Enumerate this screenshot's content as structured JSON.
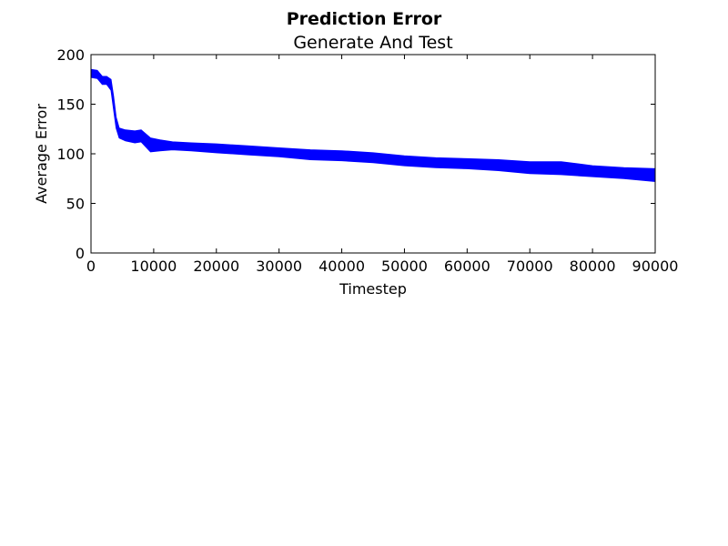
{
  "chart_data": {
    "type": "area",
    "suptitle": "Prediction Error",
    "title": "Generate And Test",
    "xlabel": "Timestep",
    "ylabel": "Average Error",
    "xlim": [
      0,
      90000
    ],
    "ylim": [
      0,
      200
    ],
    "xticks": [
      0,
      10000,
      20000,
      30000,
      40000,
      50000,
      60000,
      70000,
      80000,
      90000
    ],
    "yticks": [
      0,
      50,
      100,
      150,
      200
    ],
    "grid": false,
    "series_color": "#0000ff",
    "series": [
      {
        "x": [
          0,
          1000,
          1800,
          2500,
          3200,
          3600,
          4000,
          4500,
          5500,
          7000,
          8000,
          9500,
          11000,
          13000,
          16000,
          20000,
          25000,
          30000,
          35000,
          40000,
          45000,
          50000,
          55000,
          60000,
          65000,
          70000,
          75000,
          80000,
          85000,
          90000
        ],
        "upper": [
          185,
          184,
          178,
          178,
          175,
          158,
          137,
          126,
          124,
          123,
          124,
          116,
          114,
          112,
          111,
          110,
          108,
          106,
          104,
          103,
          101,
          98,
          96,
          95,
          94,
          92,
          92,
          88,
          86,
          85
        ],
        "lower": [
          177,
          176,
          170,
          170,
          164,
          145,
          126,
          116,
          113,
          111,
          112,
          102,
          103,
          104,
          103,
          101,
          99,
          97,
          94,
          93,
          91,
          88,
          86,
          85,
          83,
          80,
          79,
          77,
          75,
          72
        ],
        "mean": [
          181,
          180,
          174,
          174,
          170,
          152,
          131,
          121,
          118,
          117,
          118,
          109,
          108,
          108,
          107,
          105,
          103,
          101,
          99,
          98,
          96,
          93,
          91,
          90,
          88,
          86,
          85,
          82,
          80,
          79
        ]
      }
    ]
  }
}
